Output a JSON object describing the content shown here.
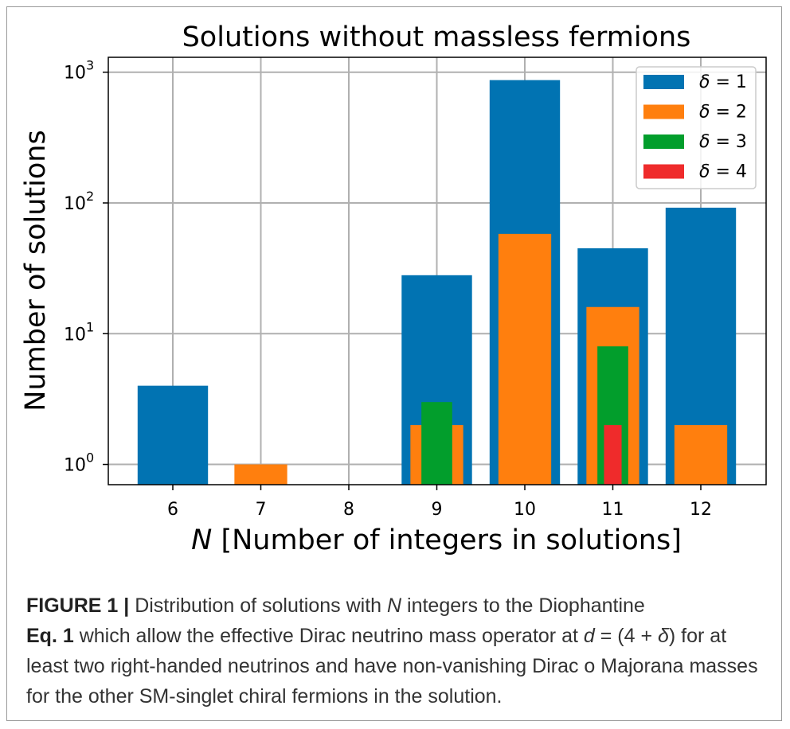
{
  "chart_data": {
    "type": "bar",
    "title": "Solutions without massless fermions",
    "xlabel_italic": "N",
    "xlabel_rest": " [Number of integers in solutions]",
    "ylabel": "Number of solutions",
    "yscale": "log",
    "ylim": [
      0.7,
      1300
    ],
    "yticks": [
      {
        "base": "10",
        "exp": "0",
        "value": 1
      },
      {
        "base": "10",
        "exp": "1",
        "value": 10
      },
      {
        "base": "10",
        "exp": "2",
        "value": 100
      },
      {
        "base": "10",
        "exp": "3",
        "value": 1000
      }
    ],
    "categories": [
      "6",
      "7",
      "8",
      "9",
      "10",
      "11",
      "12"
    ],
    "grid": true,
    "legend_position": "top-right",
    "series": [
      {
        "name": "δ = 1",
        "delta": "1",
        "color": "#0173b2",
        "width_ratio": 0.8,
        "values": [
          4,
          null,
          null,
          28,
          870,
          45,
          92
        ]
      },
      {
        "name": "δ = 2",
        "delta": "2",
        "color": "#ff7f0e",
        "width_ratio": 0.6,
        "values": [
          null,
          1,
          null,
          2,
          58,
          16,
          2
        ]
      },
      {
        "name": "δ = 3",
        "delta": "3",
        "color": "#029e2c",
        "width_ratio": 0.35,
        "values": [
          null,
          null,
          null,
          3,
          null,
          8,
          null
        ]
      },
      {
        "name": "δ = 4",
        "delta": "4",
        "color": "#ef2b2b",
        "width_ratio": 0.2,
        "values": [
          null,
          null,
          null,
          null,
          null,
          2,
          null
        ]
      }
    ]
  },
  "caption": {
    "label": "FIGURE 1 |",
    "text1": " Distribution of solutions with ",
    "n": "N",
    "text2": " integers to the Diophantine",
    "eq": "Eq. 1",
    "text3": " which allow the effective Dirac neutrino mass operator at ",
    "d": "d",
    "text4": " = (4 + ",
    "delta": "δ",
    "text5": ") for at least two right-handed neutrinos and have non-vanishing Dirac o Majorana masses for the other SM-singlet chiral fermions in the solution."
  }
}
